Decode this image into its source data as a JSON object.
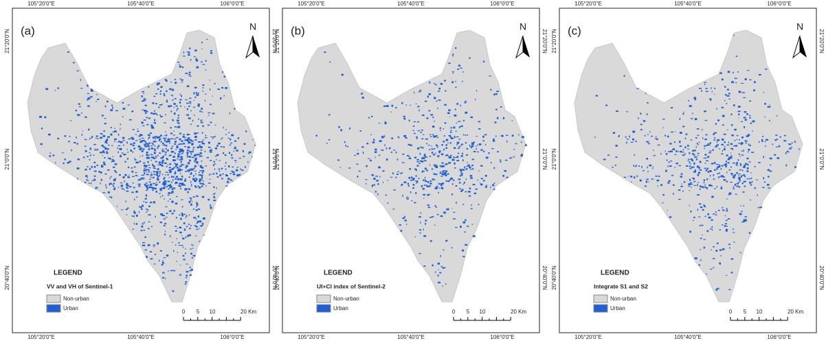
{
  "panels": [
    {
      "label": "(a)",
      "legend_title": "LEGEND",
      "legend_subtitle": "VV and VH of Sentinel-1"
    },
    {
      "label": "(b)",
      "legend_title": "LEGEND",
      "legend_subtitle": "UI+CI index of  Sentinel-2"
    },
    {
      "label": "(c)",
      "legend_title": "LEGEND",
      "legend_subtitle": "Integrate S1 and S2"
    }
  ],
  "legend_items": [
    "Non-urban",
    "Urban"
  ],
  "longitude_labels": [
    "105°20'0\"E",
    "105°40'0\"E",
    "106°0'0\"E"
  ],
  "latitude_labels": [
    "21°20'0\"N",
    "21°0'0\"N",
    "20°40'0\"N"
  ],
  "north": "N",
  "scale_labels": [
    "0",
    "5",
    "10",
    "20 Km"
  ]
}
